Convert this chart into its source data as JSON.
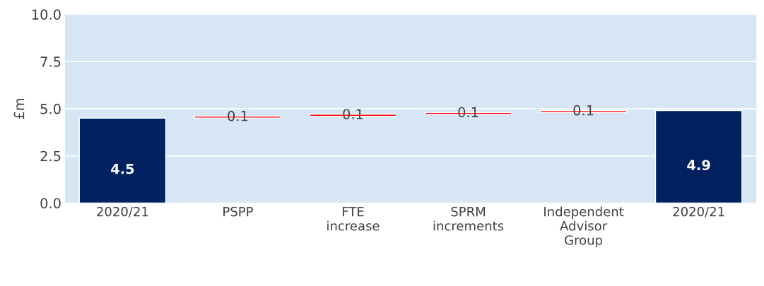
{
  "chart_data": {
    "type": "bar",
    "ylabel": "£m",
    "categories": [
      "2020/21",
      "PSPP",
      "FTE\nincrease",
      "SPRM\nincrements",
      "Independent\nAdvisor\nGroup",
      "2020/21"
    ],
    "values": [
      4.5,
      0.1,
      0.1,
      0.1,
      0.1,
      4.9
    ],
    "base": [
      0,
      4.5,
      4.6,
      4.7,
      4.8,
      0
    ],
    "colors": [
      "#002060",
      "#ff0000",
      "#ff0000",
      "#ff0000",
      "#ff0000",
      "#002060"
    ],
    "ylim": [
      0,
      10
    ],
    "yticks": [
      {
        "value": 0,
        "label": "0.0"
      },
      {
        "value": 2.5,
        "label": "2.5"
      },
      {
        "value": 5,
        "label": "5.0"
      },
      {
        "value": 7.5,
        "label": "7.5"
      },
      {
        "value": 10,
        "label": "10.0"
      }
    ],
    "grid": "y",
    "data_labels": true
  }
}
